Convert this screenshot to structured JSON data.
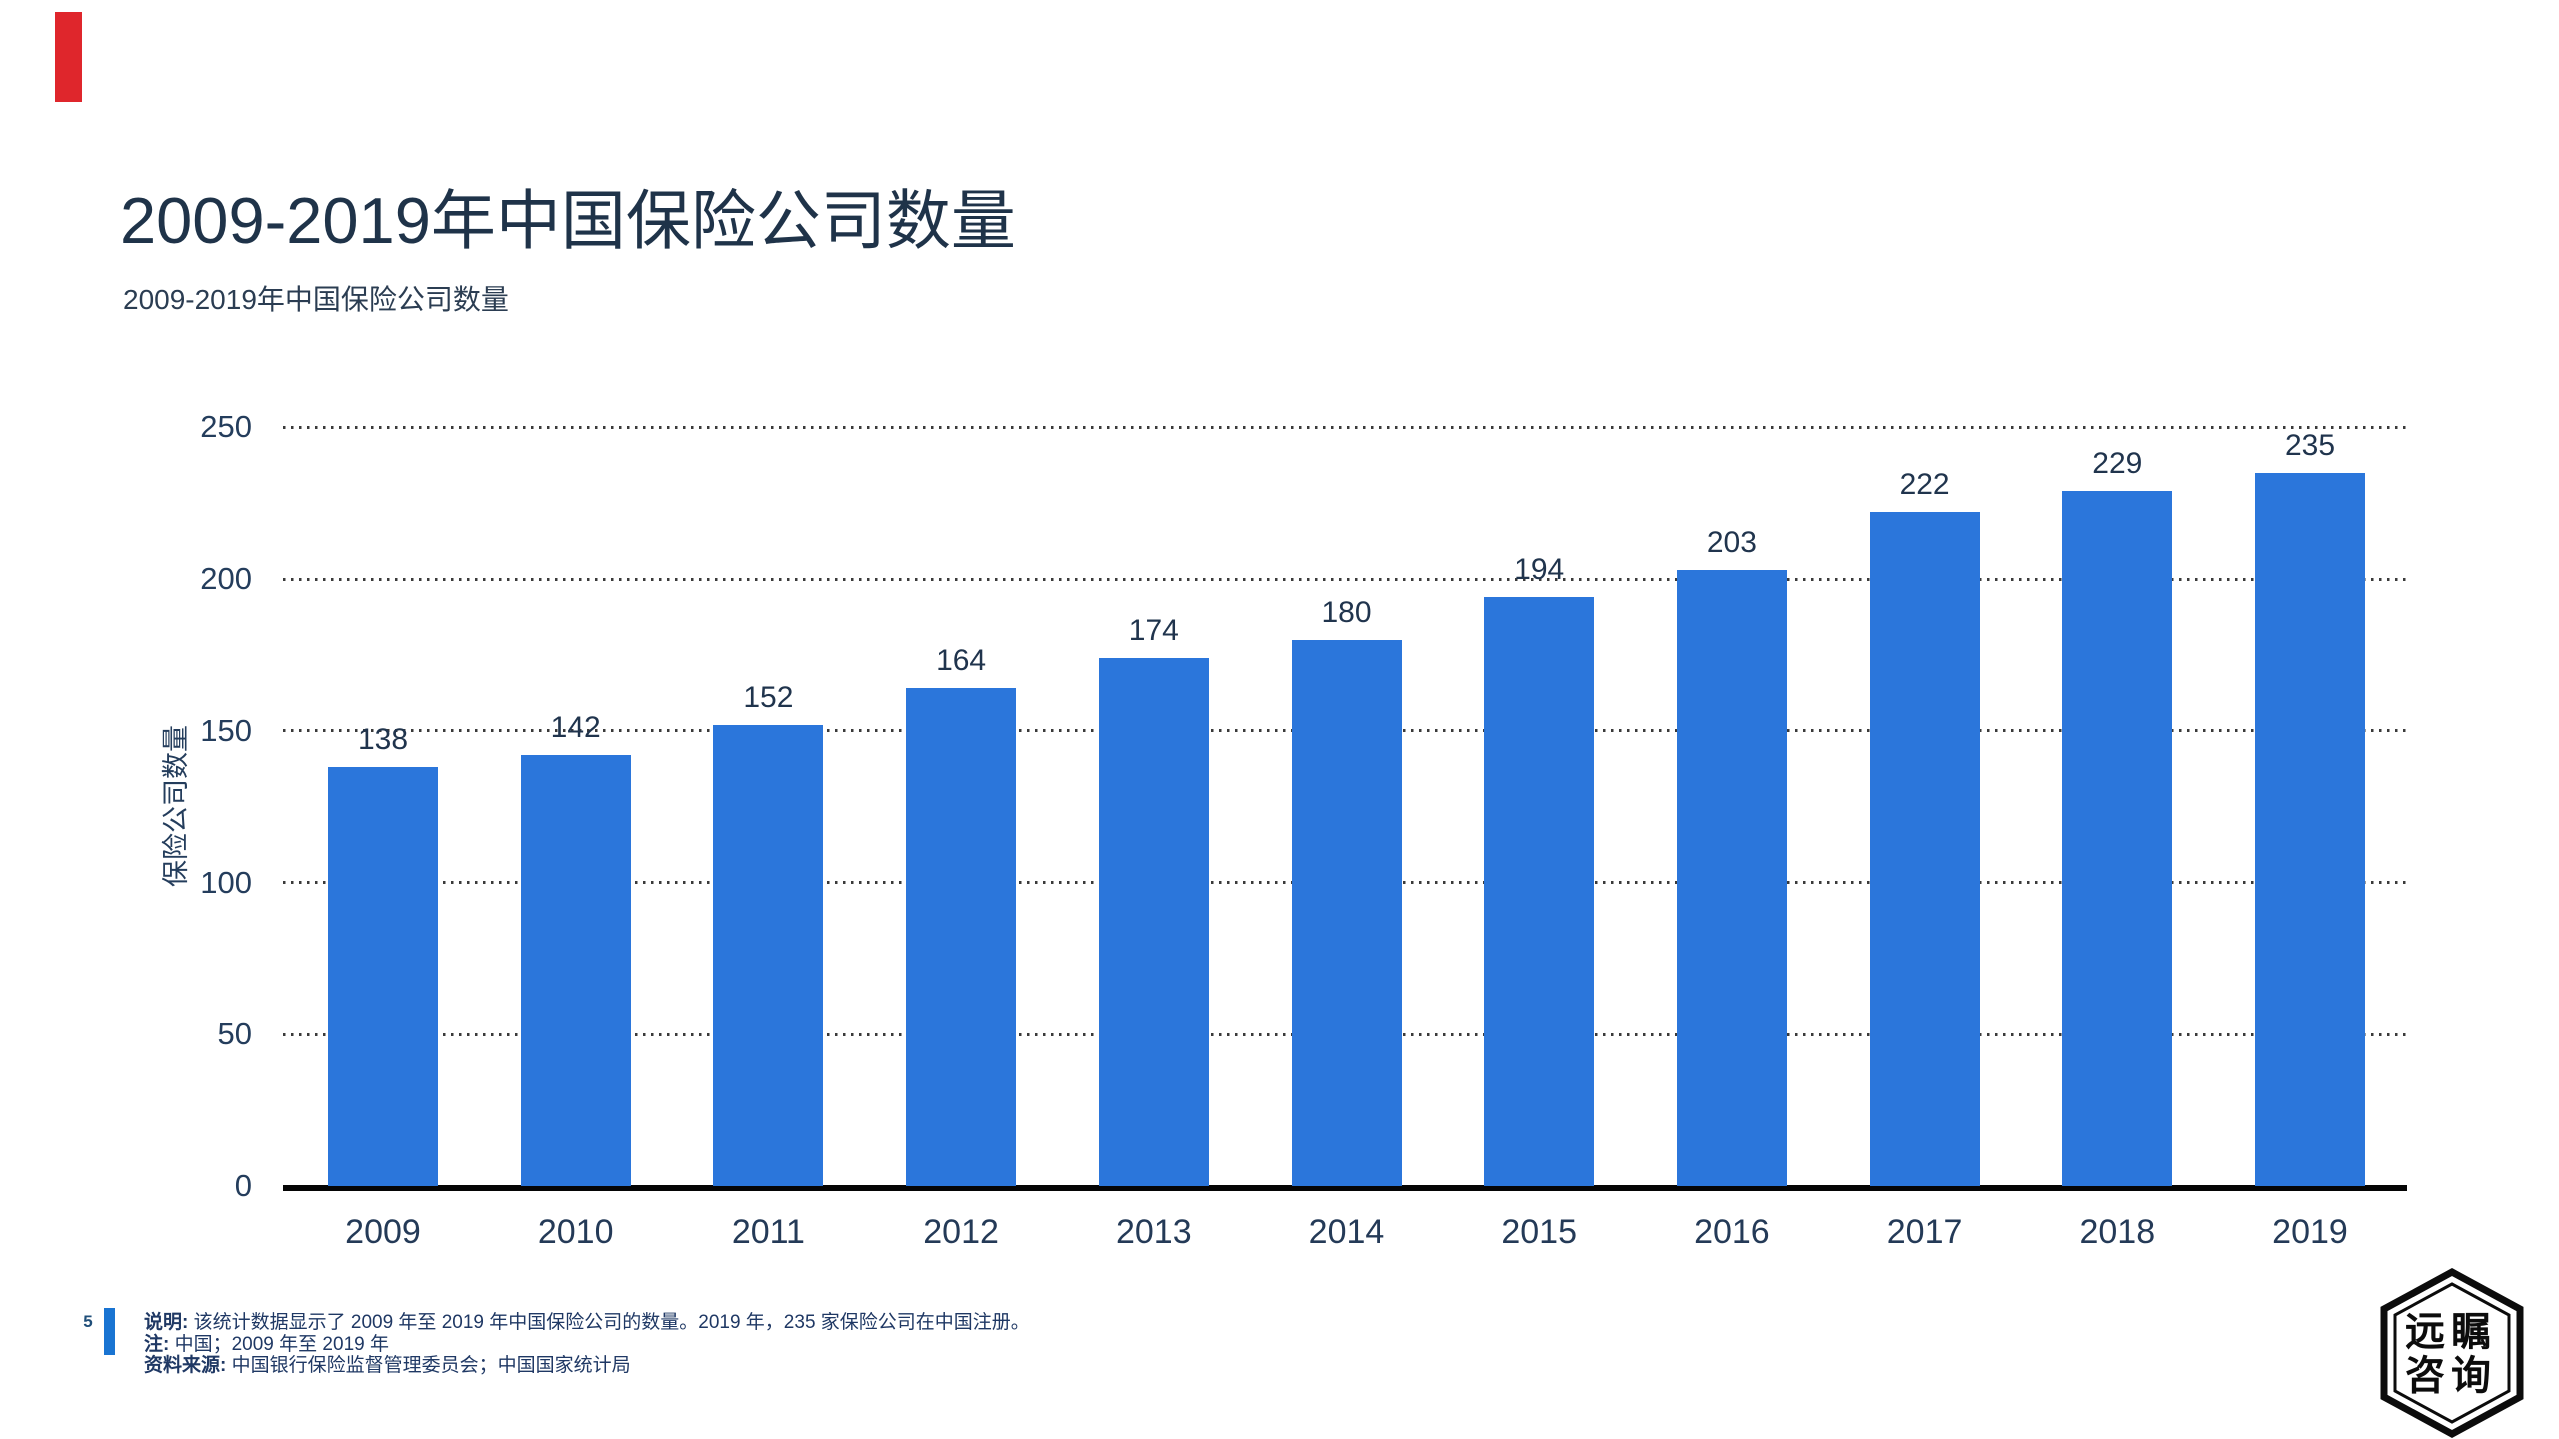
{
  "header": {
    "title": "2009-2019年中国保险公司数量",
    "subtitle": "2009-2019年中国保险公司数量"
  },
  "chart_data": {
    "type": "bar",
    "title": "2009-2019年中国保险公司数量",
    "categories": [
      "2009",
      "2010",
      "2011",
      "2012",
      "2013",
      "2014",
      "2015",
      "2016",
      "2017",
      "2018",
      "2019"
    ],
    "values": [
      138,
      142,
      152,
      164,
      174,
      180,
      194,
      203,
      222,
      229,
      235
    ],
    "xlabel": "",
    "ylabel": "保险公司数量",
    "ylim": [
      0,
      250
    ],
    "yticks": [
      0,
      50,
      100,
      150,
      200,
      250
    ],
    "grid": "horizontal dotted",
    "legend": "none",
    "value_labels_shown": true
  },
  "footer": {
    "page_number": "5",
    "notes": [
      {
        "label": "说明:",
        "text": "该统计数据显示了 2009 年至 2019 年中国保险公司的数量。2019 年，235 家保险公司在中国注册。"
      },
      {
        "label": "注:",
        "text": "中国；2009 年至 2019 年"
      },
      {
        "label": "资料来源:",
        "text": "中国银行保险监督管理委员会；中国国家统计局"
      }
    ]
  },
  "logo": {
    "line1": "远瞩",
    "line2": "咨询"
  },
  "colors": {
    "bar_blue": "#2B76DB",
    "accent_red": "#DF262C",
    "page_bar_blue": "#1974D2",
    "title_navy": "#1F3349",
    "axis_text_navy": "#243D5C",
    "footer_navy": "#1F3864",
    "axis_line_black": "#050505"
  }
}
